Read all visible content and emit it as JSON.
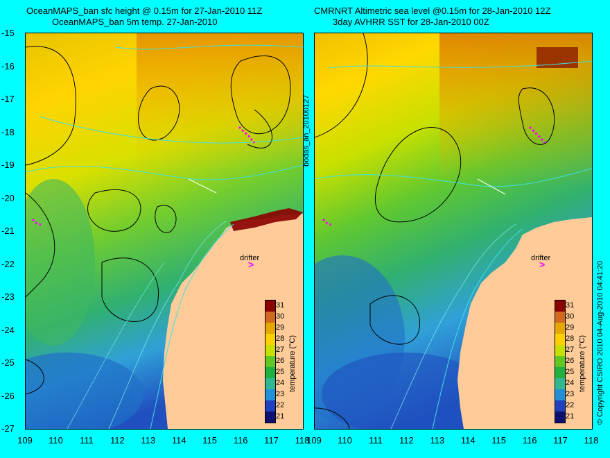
{
  "left_title_line1": "OceanMAPS_ban sfc height @ 0.15m for 27-Jan-2010 11Z",
  "left_title_line2": "OceanMAPS_ban 5m temp. 27-Jan-2010",
  "right_title_line1": "CMRNRT Altimetric sea level  @0.15m  for 28-Jan-2010 12Z",
  "right_title_line2": "3day AVHRR SST for 28-Jan-2010 00Z",
  "lat_ticks": [
    "-15",
    "-16",
    "-17",
    "-18",
    "-19",
    "-20",
    "-21",
    "-22",
    "-23",
    "-24",
    "-25",
    "-26",
    "-27"
  ],
  "lon_ticks": [
    "109",
    "110",
    "111",
    "112",
    "113",
    "114",
    "115",
    "116",
    "117",
    "118"
  ],
  "colorbar_values": [
    "31",
    "30",
    "29",
    "28",
    "27",
    "26",
    "25",
    "24",
    "23",
    "22",
    "21"
  ],
  "colorbar_label": "temperature (°C)",
  "colorbar_colors": [
    "#8b0000",
    "#d2691e",
    "#e6a800",
    "#ffd000",
    "#c8e000",
    "#60c820",
    "#20b040",
    "#30b890",
    "#2090d8",
    "#2040c0",
    "#101070"
  ],
  "drifter_label": "drifter",
  "drifter_symbol": ">",
  "side_label": "bodas_an_20100127",
  "copyright": "© Copyright CSIRO 2010  04-Aug-2010 04:41:20",
  "colors": {
    "background": "#00ffff",
    "land": "#ffcc99",
    "drifter": "#ff00ff"
  }
}
